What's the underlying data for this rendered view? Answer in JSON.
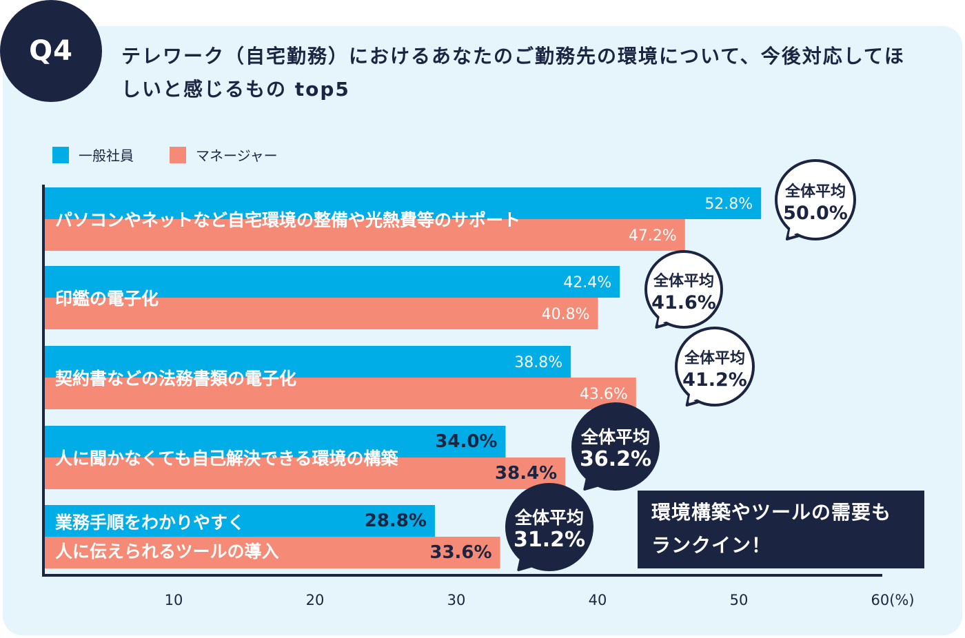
{
  "badge": "Q4",
  "title": "テレワーク（自宅勤務）におけるあなたのご勤務先の環境について、今後対応してほしいと感じるもの top5",
  "callout": "環境構築やツールの需要もランクイン！",
  "colors": {
    "employee": "#00ade6",
    "manager": "#f58a76",
    "navy": "#1b2542",
    "background": "#e6f5fc"
  },
  "chart_data": {
    "type": "bar",
    "orientation": "horizontal",
    "title": "",
    "xlabel": "(%)",
    "xlim": [
      0,
      60
    ],
    "xticks": [
      "10",
      "20",
      "30",
      "40",
      "50",
      "60(%)"
    ],
    "xtick_values": [
      10,
      20,
      30,
      40,
      50,
      60
    ],
    "grid": false,
    "legend_position": "top-left",
    "categories": [
      "パソコンやネットなど自宅環境の整備や光熱費等のサポート",
      "印鑑の電子化",
      "契約書などの法務書類の電子化",
      "人に聞かなくても自己解決できる環境の構築",
      "業務手順をわかりやすく\n人に伝えられるツールの導入"
    ],
    "series": [
      {
        "name": "一般社員",
        "values": [
          52.8,
          42.4,
          38.8,
          34.0,
          28.8
        ],
        "labels": [
          "52.8%",
          "42.4%",
          "38.8%",
          "34.0%",
          "28.8%"
        ]
      },
      {
        "name": "マネージャー",
        "values": [
          47.2,
          40.8,
          43.6,
          38.4,
          33.6
        ],
        "labels": [
          "47.2%",
          "40.8%",
          "43.6%",
          "38.4%",
          "33.6%"
        ]
      }
    ],
    "average_label": "全体平均",
    "averages": [
      "50.0%",
      "41.6%",
      "41.2%",
      "36.2%",
      "31.2%"
    ],
    "highlighted": [
      false,
      false,
      false,
      true,
      true
    ]
  }
}
